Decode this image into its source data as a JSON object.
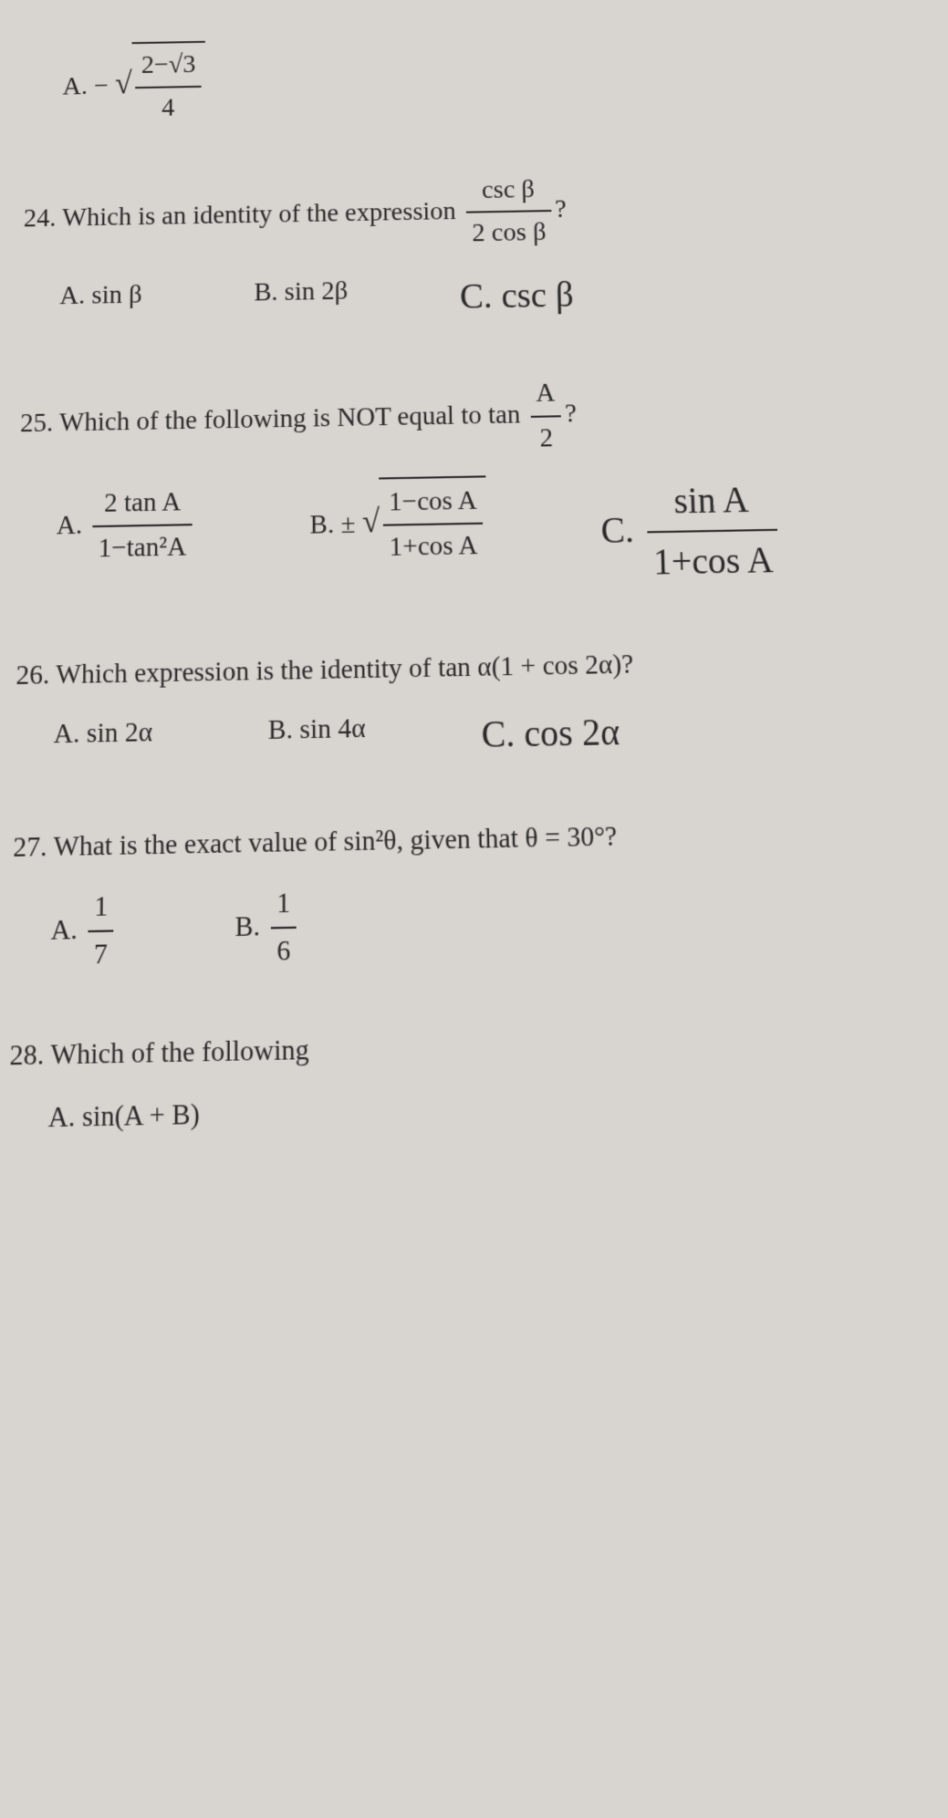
{
  "colors": {
    "background": "#d8d4d0",
    "text": "#2a2a2a",
    "rule": "#2a2a2a"
  },
  "typography": {
    "font_family": "Times New Roman",
    "base_fontsize_pt": 28,
    "line_height": 1.6
  },
  "q23_fragment": {
    "option_a_prefix": "A.",
    "option_a_expr": "− √((2−√3)/4)"
  },
  "q24": {
    "number": "24.",
    "text": "Which is an identity of the expression",
    "expr_num": "csc β",
    "expr_den": "2 cos β",
    "suffix": "?",
    "a_label": "A.",
    "a_text": "sin β",
    "b_label": "B.",
    "b_text": "sin 2β",
    "c_label": "C.",
    "c_text": "csc β"
  },
  "q25": {
    "number": "25.",
    "text": "Which of the following is NOT equal to tan",
    "expr_num": "A",
    "expr_den": "2",
    "suffix": "?",
    "a_label": "A.",
    "a_num": "2 tan A",
    "a_den": "1−tan²A",
    "b_label": "B.",
    "b_prefix": "±",
    "b_num": "1−cos A",
    "b_den": "1+cos A",
    "c_label": "C.",
    "c_num": "sin A",
    "c_den": "1+cos A"
  },
  "q26": {
    "number": "26.",
    "text": "Which expression is the identity of tan α(1 + cos 2α)?",
    "a_label": "A.",
    "a_text": "sin 2α",
    "b_label": "B.",
    "b_text": "sin 4α",
    "c_label": "C.",
    "c_text": "cos 2α"
  },
  "q27": {
    "number": "27.",
    "text": "What is the exact value of sin²θ, given that θ = 30°?",
    "a_label": "A.",
    "a_num": "1",
    "a_den": "7",
    "b_label": "B.",
    "b_num": "1",
    "b_den": "6"
  },
  "q28": {
    "number": "28.",
    "text": "Which of the following",
    "a_label": "A.",
    "a_text": "sin(A + B)"
  }
}
